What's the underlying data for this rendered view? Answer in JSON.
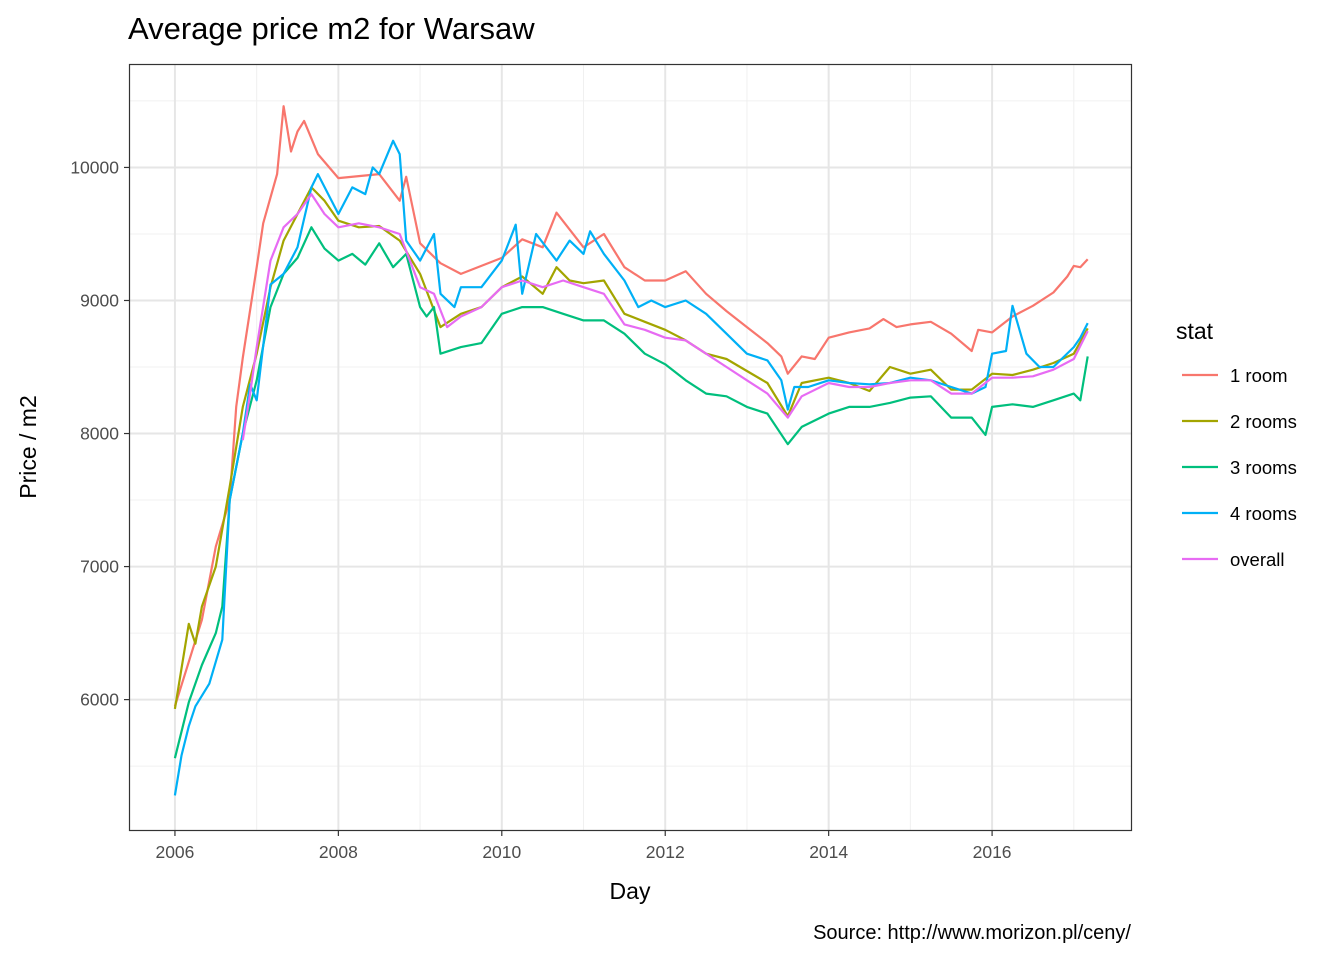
{
  "chart_data": {
    "type": "line",
    "title": "Average price m2 for Warsaw",
    "xlabel": "Day",
    "ylabel": "Price / m2",
    "caption": "Source: http://www.morizon.pl/ceny/",
    "legend_title": "stat",
    "legend_position": "right",
    "grid": true,
    "xlim": [
      2005.45,
      2017.7
    ],
    "ylim": [
      5020,
      10770
    ],
    "x_ticks": [
      2006,
      2008,
      2010,
      2012,
      2014,
      2016
    ],
    "y_ticks": [
      6000,
      7000,
      8000,
      9000,
      10000
    ],
    "series": [
      {
        "name": "1 room",
        "color": "#F8766D",
        "points": [
          [
            2006.0,
            5950
          ],
          [
            2006.33,
            6600
          ],
          [
            2006.5,
            7150
          ],
          [
            2006.67,
            7500
          ],
          [
            2006.75,
            8200
          ],
          [
            2006.83,
            8570
          ],
          [
            2007.0,
            9250
          ],
          [
            2007.08,
            9580
          ],
          [
            2007.25,
            9950
          ],
          [
            2007.33,
            10460
          ],
          [
            2007.42,
            10120
          ],
          [
            2007.5,
            10270
          ],
          [
            2007.58,
            10350
          ],
          [
            2007.75,
            10100
          ],
          [
            2008.0,
            9920
          ],
          [
            2008.5,
            9950
          ],
          [
            2008.75,
            9750
          ],
          [
            2008.83,
            9930
          ],
          [
            2009.0,
            9430
          ],
          [
            2009.25,
            9280
          ],
          [
            2009.5,
            9200
          ],
          [
            2010.0,
            9320
          ],
          [
            2010.25,
            9460
          ],
          [
            2010.5,
            9400
          ],
          [
            2010.67,
            9660
          ],
          [
            2011.0,
            9400
          ],
          [
            2011.25,
            9500
          ],
          [
            2011.5,
            9250
          ],
          [
            2011.75,
            9150
          ],
          [
            2012.0,
            9150
          ],
          [
            2012.25,
            9220
          ],
          [
            2012.5,
            9050
          ],
          [
            2012.75,
            8920
          ],
          [
            2013.0,
            8800
          ],
          [
            2013.25,
            8680
          ],
          [
            2013.42,
            8580
          ],
          [
            2013.5,
            8450
          ],
          [
            2013.67,
            8580
          ],
          [
            2013.83,
            8560
          ],
          [
            2014.0,
            8720
          ],
          [
            2014.25,
            8760
          ],
          [
            2014.5,
            8790
          ],
          [
            2014.67,
            8860
          ],
          [
            2014.83,
            8800
          ],
          [
            2015.0,
            8820
          ],
          [
            2015.25,
            8840
          ],
          [
            2015.5,
            8750
          ],
          [
            2015.75,
            8620
          ],
          [
            2015.83,
            8780
          ],
          [
            2016.0,
            8760
          ],
          [
            2016.25,
            8880
          ],
          [
            2016.5,
            8960
          ],
          [
            2016.75,
            9060
          ],
          [
            2016.92,
            9180
          ],
          [
            2017.0,
            9260
          ],
          [
            2017.08,
            9250
          ],
          [
            2017.17,
            9310
          ]
        ]
      },
      {
        "name": "2 rooms",
        "color": "#A3A500",
        "points": [
          [
            2006.0,
            5930
          ],
          [
            2006.17,
            6570
          ],
          [
            2006.25,
            6420
          ],
          [
            2006.33,
            6700
          ],
          [
            2006.5,
            7000
          ],
          [
            2006.67,
            7600
          ],
          [
            2006.83,
            8200
          ],
          [
            2007.0,
            8600
          ],
          [
            2007.17,
            9100
          ],
          [
            2007.33,
            9450
          ],
          [
            2007.5,
            9650
          ],
          [
            2007.67,
            9850
          ],
          [
            2007.83,
            9750
          ],
          [
            2008.0,
            9600
          ],
          [
            2008.25,
            9550
          ],
          [
            2008.5,
            9560
          ],
          [
            2008.75,
            9450
          ],
          [
            2009.0,
            9200
          ],
          [
            2009.25,
            8800
          ],
          [
            2009.5,
            8900
          ],
          [
            2009.75,
            8950
          ],
          [
            2010.0,
            9100
          ],
          [
            2010.25,
            9180
          ],
          [
            2010.5,
            9050
          ],
          [
            2010.67,
            9250
          ],
          [
            2010.83,
            9150
          ],
          [
            2011.0,
            9130
          ],
          [
            2011.25,
            9150
          ],
          [
            2011.5,
            8900
          ],
          [
            2011.75,
            8840
          ],
          [
            2012.0,
            8780
          ],
          [
            2012.25,
            8700
          ],
          [
            2012.5,
            8600
          ],
          [
            2012.75,
            8560
          ],
          [
            2013.0,
            8470
          ],
          [
            2013.25,
            8380
          ],
          [
            2013.5,
            8130
          ],
          [
            2013.67,
            8380
          ],
          [
            2014.0,
            8420
          ],
          [
            2014.25,
            8380
          ],
          [
            2014.5,
            8320
          ],
          [
            2014.75,
            8500
          ],
          [
            2015.0,
            8450
          ],
          [
            2015.25,
            8480
          ],
          [
            2015.5,
            8330
          ],
          [
            2015.75,
            8330
          ],
          [
            2016.0,
            8450
          ],
          [
            2016.25,
            8440
          ],
          [
            2016.5,
            8480
          ],
          [
            2016.75,
            8530
          ],
          [
            2017.0,
            8600
          ],
          [
            2017.17,
            8790
          ]
        ]
      },
      {
        "name": "3 rooms",
        "color": "#00BF7D",
        "points": [
          [
            2006.0,
            5560
          ],
          [
            2006.17,
            5980
          ],
          [
            2006.33,
            6260
          ],
          [
            2006.5,
            6500
          ],
          [
            2006.58,
            6700
          ],
          [
            2006.67,
            7500
          ],
          [
            2006.83,
            8000
          ],
          [
            2007.0,
            8400
          ],
          [
            2007.17,
            8950
          ],
          [
            2007.33,
            9200
          ],
          [
            2007.5,
            9320
          ],
          [
            2007.67,
            9550
          ],
          [
            2007.83,
            9390
          ],
          [
            2008.0,
            9300
          ],
          [
            2008.17,
            9350
          ],
          [
            2008.33,
            9270
          ],
          [
            2008.5,
            9430
          ],
          [
            2008.67,
            9250
          ],
          [
            2008.83,
            9350
          ],
          [
            2009.0,
            8950
          ],
          [
            2009.08,
            8880
          ],
          [
            2009.17,
            8950
          ],
          [
            2009.25,
            8600
          ],
          [
            2009.5,
            8650
          ],
          [
            2009.75,
            8680
          ],
          [
            2010.0,
            8900
          ],
          [
            2010.25,
            8950
          ],
          [
            2010.5,
            8950
          ],
          [
            2010.75,
            8900
          ],
          [
            2011.0,
            8850
          ],
          [
            2011.25,
            8850
          ],
          [
            2011.5,
            8750
          ],
          [
            2011.75,
            8600
          ],
          [
            2012.0,
            8520
          ],
          [
            2012.25,
            8400
          ],
          [
            2012.5,
            8300
          ],
          [
            2012.75,
            8280
          ],
          [
            2013.0,
            8200
          ],
          [
            2013.25,
            8150
          ],
          [
            2013.5,
            7920
          ],
          [
            2013.67,
            8050
          ],
          [
            2014.0,
            8150
          ],
          [
            2014.25,
            8200
          ],
          [
            2014.5,
            8200
          ],
          [
            2014.75,
            8230
          ],
          [
            2015.0,
            8270
          ],
          [
            2015.25,
            8280
          ],
          [
            2015.5,
            8120
          ],
          [
            2015.75,
            8120
          ],
          [
            2015.92,
            7990
          ],
          [
            2016.0,
            8200
          ],
          [
            2016.25,
            8220
          ],
          [
            2016.5,
            8200
          ],
          [
            2016.75,
            8250
          ],
          [
            2017.0,
            8300
          ],
          [
            2017.08,
            8250
          ],
          [
            2017.17,
            8580
          ]
        ]
      },
      {
        "name": "4 rooms",
        "color": "#00B0F6",
        "points": [
          [
            2006.0,
            5280
          ],
          [
            2006.08,
            5580
          ],
          [
            2006.17,
            5800
          ],
          [
            2006.25,
            5950
          ],
          [
            2006.42,
            6120
          ],
          [
            2006.58,
            6450
          ],
          [
            2006.67,
            7500
          ],
          [
            2006.83,
            8000
          ],
          [
            2006.92,
            8370
          ],
          [
            2007.0,
            8250
          ],
          [
            2007.17,
            9120
          ],
          [
            2007.33,
            9200
          ],
          [
            2007.5,
            9400
          ],
          [
            2007.67,
            9850
          ],
          [
            2007.75,
            9950
          ],
          [
            2008.0,
            9650
          ],
          [
            2008.17,
            9850
          ],
          [
            2008.33,
            9800
          ],
          [
            2008.42,
            10000
          ],
          [
            2008.5,
            9950
          ],
          [
            2008.67,
            10200
          ],
          [
            2008.75,
            10100
          ],
          [
            2008.83,
            9450
          ],
          [
            2009.0,
            9300
          ],
          [
            2009.17,
            9500
          ],
          [
            2009.25,
            9050
          ],
          [
            2009.42,
            8950
          ],
          [
            2009.5,
            9100
          ],
          [
            2009.75,
            9100
          ],
          [
            2010.0,
            9300
          ],
          [
            2010.17,
            9570
          ],
          [
            2010.25,
            9050
          ],
          [
            2010.42,
            9500
          ],
          [
            2010.67,
            9300
          ],
          [
            2010.83,
            9450
          ],
          [
            2011.0,
            9350
          ],
          [
            2011.08,
            9520
          ],
          [
            2011.25,
            9350
          ],
          [
            2011.5,
            9150
          ],
          [
            2011.67,
            8950
          ],
          [
            2011.83,
            9000
          ],
          [
            2012.0,
            8950
          ],
          [
            2012.25,
            9000
          ],
          [
            2012.5,
            8900
          ],
          [
            2012.75,
            8750
          ],
          [
            2013.0,
            8600
          ],
          [
            2013.25,
            8550
          ],
          [
            2013.42,
            8400
          ],
          [
            2013.5,
            8180
          ],
          [
            2013.58,
            8350
          ],
          [
            2013.75,
            8350
          ],
          [
            2014.0,
            8400
          ],
          [
            2014.25,
            8380
          ],
          [
            2014.5,
            8370
          ],
          [
            2014.75,
            8380
          ],
          [
            2015.0,
            8420
          ],
          [
            2015.25,
            8400
          ],
          [
            2015.5,
            8350
          ],
          [
            2015.75,
            8300
          ],
          [
            2015.92,
            8350
          ],
          [
            2016.0,
            8600
          ],
          [
            2016.17,
            8620
          ],
          [
            2016.25,
            8960
          ],
          [
            2016.42,
            8600
          ],
          [
            2016.58,
            8500
          ],
          [
            2016.75,
            8500
          ],
          [
            2017.0,
            8650
          ],
          [
            2017.08,
            8720
          ],
          [
            2017.17,
            8830
          ]
        ]
      },
      {
        "name": "overall",
        "color": "#E76BF3",
        "points": [
          [
            2006.83,
            7950
          ],
          [
            2006.92,
            8300
          ],
          [
            2007.0,
            8650
          ],
          [
            2007.17,
            9300
          ],
          [
            2007.33,
            9550
          ],
          [
            2007.5,
            9650
          ],
          [
            2007.67,
            9800
          ],
          [
            2007.83,
            9650
          ],
          [
            2008.0,
            9550
          ],
          [
            2008.25,
            9580
          ],
          [
            2008.5,
            9550
          ],
          [
            2008.75,
            9500
          ],
          [
            2009.0,
            9100
          ],
          [
            2009.17,
            9050
          ],
          [
            2009.33,
            8800
          ],
          [
            2009.5,
            8880
          ],
          [
            2009.75,
            8950
          ],
          [
            2010.0,
            9100
          ],
          [
            2010.25,
            9150
          ],
          [
            2010.5,
            9100
          ],
          [
            2010.75,
            9150
          ],
          [
            2011.0,
            9100
          ],
          [
            2011.25,
            9050
          ],
          [
            2011.5,
            8820
          ],
          [
            2011.75,
            8780
          ],
          [
            2012.0,
            8720
          ],
          [
            2012.25,
            8700
          ],
          [
            2012.5,
            8600
          ],
          [
            2012.75,
            8500
          ],
          [
            2013.0,
            8400
          ],
          [
            2013.25,
            8300
          ],
          [
            2013.5,
            8120
          ],
          [
            2013.67,
            8280
          ],
          [
            2014.0,
            8380
          ],
          [
            2014.25,
            8350
          ],
          [
            2014.5,
            8350
          ],
          [
            2014.75,
            8380
          ],
          [
            2015.0,
            8400
          ],
          [
            2015.25,
            8400
          ],
          [
            2015.5,
            8300
          ],
          [
            2015.75,
            8300
          ],
          [
            2016.0,
            8420
          ],
          [
            2016.25,
            8420
          ],
          [
            2016.5,
            8430
          ],
          [
            2016.75,
            8480
          ],
          [
            2017.0,
            8560
          ],
          [
            2017.17,
            8770
          ]
        ]
      }
    ]
  }
}
